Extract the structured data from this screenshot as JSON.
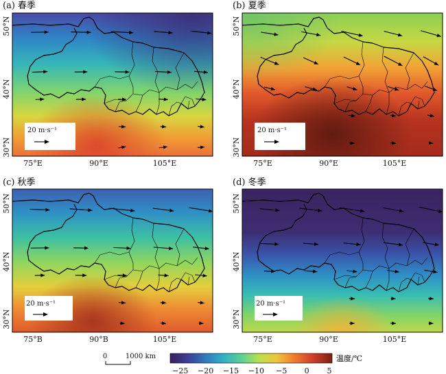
{
  "panels": [
    {
      "id": "a",
      "title": "(a) 春季",
      "season": "spring",
      "x_ticks": [
        "75°E",
        "90°E",
        "105°E"
      ],
      "y_ticks": [
        "50°N",
        "40°N",
        "30°N"
      ],
      "legend_label": "20 m·s⁻¹"
    },
    {
      "id": "b",
      "title": "(b) 夏季",
      "season": "summer",
      "x_ticks": [
        "75°E",
        "90°E",
        "105°E"
      ],
      "y_ticks": [
        "50°N",
        "40°N",
        "30°N"
      ],
      "legend_label": "20 m·s⁻¹"
    },
    {
      "id": "c",
      "title": "(c) 秋季",
      "season": "autumn",
      "x_ticks": [
        "75°B",
        "90°B",
        "105°E"
      ],
      "y_ticks": [
        "50°N",
        "40°N",
        "30°N"
      ],
      "legend_label": "20 m·s⁻¹"
    },
    {
      "id": "d",
      "title": "(d) 冬季",
      "season": "winter",
      "x_ticks": [
        "75°E",
        "90°E",
        "105°E"
      ],
      "y_ticks": [
        "50°N",
        "40°N",
        "30°N"
      ],
      "legend_label": "20 m·s⁻¹"
    }
  ],
  "scale_bar": {
    "zero": "0",
    "distance": "1000 km"
  },
  "colorbar": {
    "label": "温度/℃",
    "ticks": [
      "−25",
      "−20",
      "−15",
      "−10",
      "−5",
      "0",
      "5"
    ],
    "min": -27,
    "max": 5,
    "colors": [
      "#3a1f5c",
      "#3b3f99",
      "#2f7bc0",
      "#33b0c4",
      "#5ccf94",
      "#b9e04f",
      "#f0c33c",
      "#ef7a2e",
      "#d0402a",
      "#7a2114"
    ]
  }
}
